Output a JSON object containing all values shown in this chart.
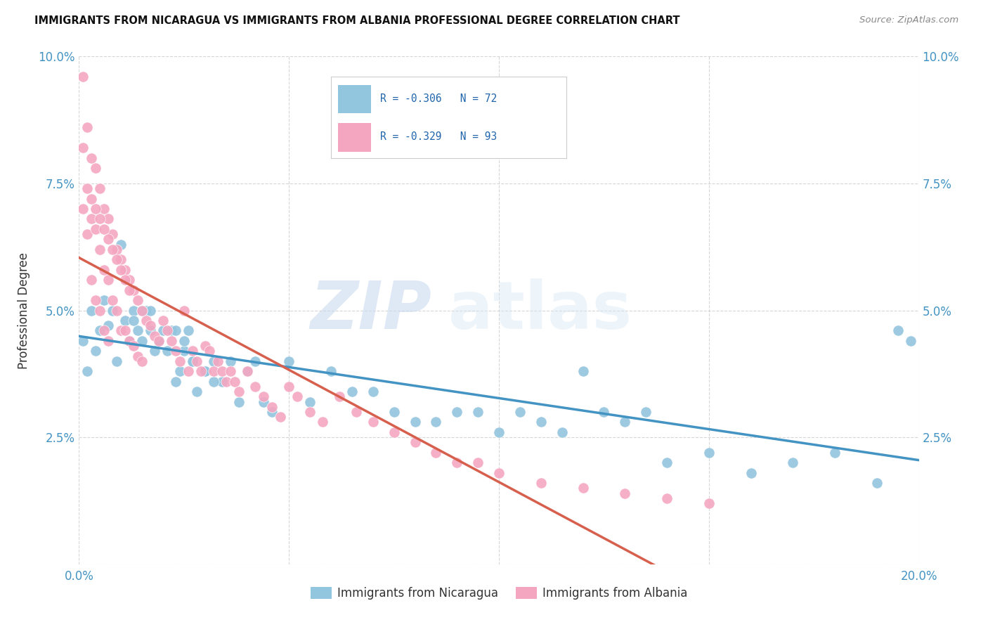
{
  "title": "IMMIGRANTS FROM NICARAGUA VS IMMIGRANTS FROM ALBANIA PROFESSIONAL DEGREE CORRELATION CHART",
  "source": "Source: ZipAtlas.com",
  "ylabel": "Professional Degree",
  "xlim": [
    0.0,
    0.2
  ],
  "ylim": [
    0.0,
    0.1
  ],
  "xticks": [
    0.0,
    0.05,
    0.1,
    0.15,
    0.2
  ],
  "yticks": [
    0.0,
    0.025,
    0.05,
    0.075,
    0.1
  ],
  "xtick_labels": [
    "0.0%",
    "",
    "",
    "",
    "20.0%"
  ],
  "ytick_labels": [
    "",
    "2.5%",
    "5.0%",
    "7.5%",
    "10.0%"
  ],
  "nicaragua_color": "#92c5de",
  "albania_color": "#f4a6c0",
  "nicaragua_line_color": "#4393c3",
  "albania_line_color": "#d6604d",
  "R_nicaragua": -0.306,
  "N_nicaragua": 72,
  "R_albania": -0.329,
  "N_albania": 93,
  "watermark_zip": "ZIP",
  "watermark_atlas": "atlas",
  "nicaragua_x": [
    0.001,
    0.002,
    0.003,
    0.004,
    0.005,
    0.006,
    0.007,
    0.008,
    0.009,
    0.01,
    0.011,
    0.012,
    0.013,
    0.014,
    0.015,
    0.016,
    0.017,
    0.018,
    0.019,
    0.02,
    0.022,
    0.023,
    0.024,
    0.025,
    0.026,
    0.027,
    0.028,
    0.03,
    0.032,
    0.034,
    0.036,
    0.038,
    0.04,
    0.042,
    0.044,
    0.046,
    0.05,
    0.055,
    0.06,
    0.065,
    0.07,
    0.075,
    0.08,
    0.085,
    0.09,
    0.095,
    0.1,
    0.105,
    0.11,
    0.115,
    0.12,
    0.125,
    0.13,
    0.135,
    0.14,
    0.15,
    0.16,
    0.17,
    0.18,
    0.19,
    0.195,
    0.198,
    0.013,
    0.015,
    0.017,
    0.019,
    0.021,
    0.023,
    0.025,
    0.027,
    0.03,
    0.032
  ],
  "nicaragua_y": [
    0.044,
    0.038,
    0.05,
    0.042,
    0.046,
    0.052,
    0.047,
    0.05,
    0.04,
    0.063,
    0.048,
    0.044,
    0.05,
    0.046,
    0.044,
    0.05,
    0.05,
    0.042,
    0.044,
    0.046,
    0.046,
    0.036,
    0.038,
    0.042,
    0.046,
    0.04,
    0.034,
    0.038,
    0.04,
    0.036,
    0.04,
    0.032,
    0.038,
    0.04,
    0.032,
    0.03,
    0.04,
    0.032,
    0.038,
    0.034,
    0.034,
    0.03,
    0.028,
    0.028,
    0.03,
    0.03,
    0.026,
    0.03,
    0.028,
    0.026,
    0.038,
    0.03,
    0.028,
    0.03,
    0.02,
    0.022,
    0.018,
    0.02,
    0.022,
    0.016,
    0.046,
    0.044,
    0.048,
    0.05,
    0.046,
    0.044,
    0.042,
    0.046,
    0.044,
    0.04,
    0.038,
    0.036
  ],
  "albania_x": [
    0.001,
    0.001,
    0.001,
    0.002,
    0.002,
    0.003,
    0.003,
    0.003,
    0.004,
    0.004,
    0.004,
    0.005,
    0.005,
    0.005,
    0.006,
    0.006,
    0.006,
    0.007,
    0.007,
    0.007,
    0.008,
    0.008,
    0.009,
    0.009,
    0.01,
    0.01,
    0.011,
    0.011,
    0.012,
    0.012,
    0.013,
    0.013,
    0.014,
    0.014,
    0.015,
    0.015,
    0.016,
    0.017,
    0.018,
    0.019,
    0.02,
    0.021,
    0.022,
    0.023,
    0.024,
    0.025,
    0.026,
    0.027,
    0.028,
    0.029,
    0.03,
    0.031,
    0.032,
    0.033,
    0.034,
    0.035,
    0.036,
    0.037,
    0.038,
    0.04,
    0.042,
    0.044,
    0.046,
    0.048,
    0.05,
    0.052,
    0.055,
    0.058,
    0.062,
    0.066,
    0.07,
    0.075,
    0.08,
    0.085,
    0.09,
    0.095,
    0.1,
    0.11,
    0.12,
    0.13,
    0.14,
    0.15,
    0.002,
    0.003,
    0.004,
    0.005,
    0.006,
    0.007,
    0.008,
    0.009,
    0.01,
    0.011,
    0.012
  ],
  "albania_y": [
    0.096,
    0.082,
    0.07,
    0.086,
    0.065,
    0.08,
    0.068,
    0.056,
    0.078,
    0.066,
    0.052,
    0.074,
    0.062,
    0.05,
    0.07,
    0.058,
    0.046,
    0.068,
    0.056,
    0.044,
    0.065,
    0.052,
    0.062,
    0.05,
    0.06,
    0.046,
    0.058,
    0.046,
    0.056,
    0.044,
    0.054,
    0.043,
    0.052,
    0.041,
    0.05,
    0.04,
    0.048,
    0.047,
    0.045,
    0.044,
    0.048,
    0.046,
    0.044,
    0.042,
    0.04,
    0.05,
    0.038,
    0.042,
    0.04,
    0.038,
    0.043,
    0.042,
    0.038,
    0.04,
    0.038,
    0.036,
    0.038,
    0.036,
    0.034,
    0.038,
    0.035,
    0.033,
    0.031,
    0.029,
    0.035,
    0.033,
    0.03,
    0.028,
    0.033,
    0.03,
    0.028,
    0.026,
    0.024,
    0.022,
    0.02,
    0.02,
    0.018,
    0.016,
    0.015,
    0.014,
    0.013,
    0.012,
    0.074,
    0.072,
    0.07,
    0.068,
    0.066,
    0.064,
    0.062,
    0.06,
    0.058,
    0.056,
    0.054
  ]
}
